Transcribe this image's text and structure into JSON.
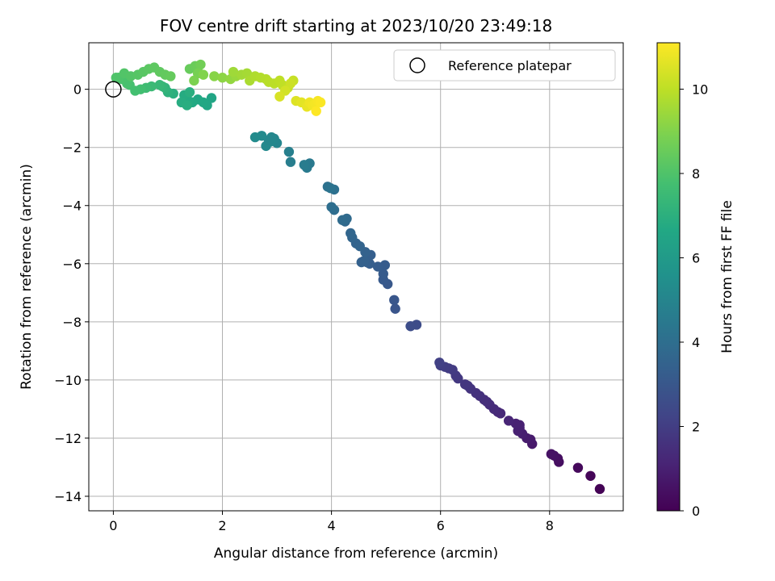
{
  "chart_data": {
    "type": "scatter",
    "title": "FOV centre drift starting at 2023/10/20 23:49:18",
    "xlabel": "Angular distance from reference (arcmin)",
    "ylabel": "Rotation from reference (arcmin)",
    "xlim": [
      -0.45,
      9.35
    ],
    "ylim": [
      -14.5,
      1.6
    ],
    "xticks": [
      0,
      2,
      4,
      6,
      8
    ],
    "yticks": [
      0,
      -2,
      -4,
      -6,
      -8,
      -10,
      -12,
      -14
    ],
    "grid": true,
    "legend": {
      "position": "top-right",
      "entries": [
        "Reference platepar"
      ]
    },
    "reference_point": {
      "x": 0,
      "y": 0
    },
    "colorbar": {
      "label": "Hours from first FF file",
      "range": [
        0,
        11.1
      ],
      "ticks": [
        0,
        2,
        4,
        6,
        8,
        10
      ],
      "colormap": "viridis"
    },
    "x": [
      8.92,
      8.75,
      8.52,
      8.17,
      8.15,
      8.08,
      8.03,
      7.68,
      7.65,
      7.58,
      7.5,
      7.45,
      7.45,
      7.42,
      7.38,
      7.25,
      7.1,
      7.05,
      6.98,
      6.9,
      6.85,
      6.8,
      6.72,
      6.65,
      6.55,
      6.5,
      6.45,
      6.32,
      6.28,
      6.22,
      6.15,
      6.08,
      6.0,
      5.98,
      5.56,
      5.45,
      5.17,
      5.15,
      5.03,
      4.95,
      4.95,
      4.98,
      4.85,
      4.7,
      4.65,
      4.72,
      4.6,
      4.55,
      4.45,
      4.62,
      4.52,
      4.38,
      4.35,
      4.25,
      4.28,
      4.2,
      4.05,
      4.0,
      4.05,
      3.93,
      3.98,
      3.6,
      3.55,
      3.5,
      3.25,
      3.22,
      3.0,
      2.95,
      2.9,
      2.88,
      2.8,
      2.85,
      2.72,
      2.6,
      1.8,
      1.72,
      1.65,
      1.55,
      1.45,
      1.38,
      1.3,
      1.25,
      1.35,
      1.4,
      1.1,
      1.0,
      0.95,
      0.9,
      0.85,
      0.7,
      0.6,
      0.5,
      0.4,
      0.3,
      0.25,
      0.15,
      0.1,
      0.05,
      0.2,
      0.32,
      0.45,
      0.55,
      0.65,
      0.75,
      0.85,
      0.95,
      1.05,
      1.4,
      1.5,
      1.55,
      1.6,
      1.55,
      1.48,
      1.65,
      1.85,
      2.0,
      2.15,
      2.25,
      2.2,
      2.35,
      2.45,
      2.5,
      2.6,
      2.7,
      2.8,
      2.85,
      2.95,
      3.05,
      3.1,
      3.2,
      3.3,
      3.25,
      3.15,
      3.05,
      3.35,
      3.45,
      3.55,
      3.6,
      3.65,
      3.7,
      3.75,
      3.8,
      3.72
    ],
    "y": [
      -13.75,
      -13.3,
      -13.02,
      -12.82,
      -12.7,
      -12.6,
      -12.55,
      -12.2,
      -12.05,
      -12.0,
      -11.85,
      -11.65,
      -11.55,
      -11.75,
      -11.5,
      -11.4,
      -11.15,
      -11.1,
      -11.0,
      -10.85,
      -10.75,
      -10.68,
      -10.55,
      -10.45,
      -10.3,
      -10.2,
      -10.15,
      -9.95,
      -9.85,
      -9.65,
      -9.6,
      -9.55,
      -9.5,
      -9.4,
      -8.1,
      -8.15,
      -7.55,
      -7.25,
      -6.7,
      -6.55,
      -6.35,
      -6.05,
      -6.1,
      -6.0,
      -5.95,
      -5.7,
      -5.9,
      -5.95,
      -5.3,
      -5.6,
      -5.4,
      -5.1,
      -4.95,
      -4.55,
      -4.45,
      -4.5,
      -4.15,
      -4.05,
      -3.45,
      -3.35,
      -3.4,
      -2.55,
      -2.7,
      -2.6,
      -2.5,
      -2.15,
      -1.85,
      -1.7,
      -1.65,
      -1.8,
      -1.95,
      -1.75,
      -1.6,
      -1.65,
      -0.3,
      -0.55,
      -0.45,
      -0.35,
      -0.45,
      -0.4,
      -0.2,
      -0.45,
      -0.55,
      -0.1,
      -0.15,
      -0.1,
      0.05,
      0.1,
      0.15,
      0.1,
      0.05,
      0.0,
      -0.05,
      0.15,
      0.2,
      0.35,
      0.4,
      0.4,
      0.55,
      0.45,
      0.5,
      0.6,
      0.7,
      0.75,
      0.6,
      0.5,
      0.45,
      0.7,
      0.8,
      0.75,
      0.85,
      0.55,
      0.3,
      0.5,
      0.45,
      0.4,
      0.35,
      0.45,
      0.6,
      0.5,
      0.55,
      0.3,
      0.45,
      0.4,
      0.35,
      0.25,
      0.2,
      0.3,
      0.15,
      0.05,
      0.3,
      0.2,
      -0.05,
      -0.25,
      -0.4,
      -0.45,
      -0.6,
      -0.45,
      -0.55,
      -0.5,
      -0.4,
      -0.45,
      -0.75
    ],
    "hours": [
      0.05,
      0.15,
      0.25,
      0.4,
      0.45,
      0.5,
      0.55,
      0.75,
      0.8,
      0.85,
      0.95,
      1.0,
      1.02,
      1.0,
      1.05,
      1.15,
      1.25,
      1.3,
      1.35,
      1.4,
      1.45,
      1.5,
      1.55,
      1.6,
      1.65,
      1.7,
      1.75,
      1.8,
      1.85,
      1.9,
      1.95,
      2.0,
      2.05,
      2.1,
      2.55,
      2.6,
      2.9,
      2.95,
      3.05,
      3.1,
      3.15,
      3.2,
      3.25,
      3.3,
      3.32,
      3.35,
      3.4,
      3.42,
      3.5,
      3.45,
      3.55,
      3.6,
      3.65,
      3.75,
      3.8,
      3.85,
      3.95,
      4.0,
      4.1,
      4.15,
      4.2,
      4.5,
      4.55,
      4.6,
      4.7,
      4.75,
      5.0,
      5.05,
      5.1,
      5.15,
      5.2,
      5.1,
      5.25,
      5.3,
      6.5,
      6.55,
      6.6,
      6.65,
      6.7,
      6.75,
      6.8,
      6.85,
      6.9,
      6.95,
      7.0,
      7.1,
      7.2,
      7.3,
      7.4,
      7.5,
      7.6,
      7.7,
      7.75,
      7.8,
      7.85,
      7.9,
      7.95,
      8.0,
      8.05,
      8.1,
      8.15,
      8.2,
      8.25,
      8.3,
      8.35,
      8.4,
      8.45,
      8.5,
      8.55,
      8.6,
      8.7,
      8.8,
      8.9,
      9.0,
      9.1,
      9.2,
      9.3,
      9.4,
      9.5,
      9.55,
      9.6,
      9.7,
      9.75,
      9.8,
      9.85,
      9.9,
      9.95,
      10.0,
      10.05,
      10.1,
      10.15,
      10.25,
      10.35,
      10.45,
      10.55,
      10.65,
      10.75,
      10.85,
      10.9,
      10.95,
      11.0,
      11.05,
      11.1
    ]
  }
}
